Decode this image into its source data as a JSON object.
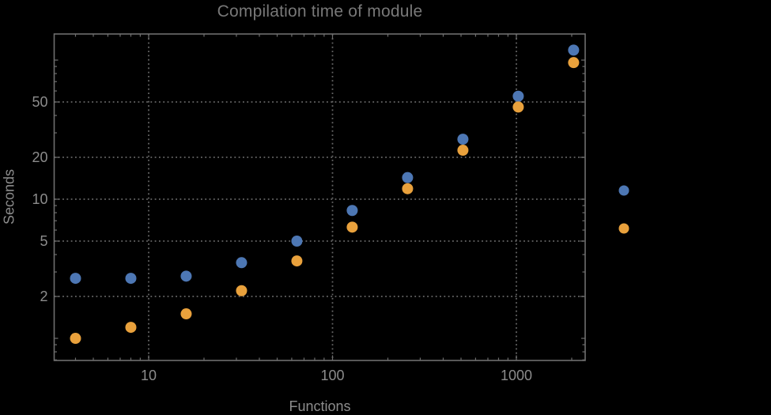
{
  "chart_data": {
    "type": "scatter",
    "scale": "log-log",
    "title": "Compilation time of module",
    "xlabel": "Functions",
    "ylabel": "Seconds",
    "x": [
      4,
      8,
      16,
      32,
      64,
      128,
      256,
      512,
      1024,
      2048
    ],
    "series": [
      {
        "name": "series-1",
        "color": "#4D77B4",
        "values": [
          2.7,
          2.7,
          2.8,
          3.5,
          5.0,
          8.3,
          14.3,
          27,
          55,
          118
        ]
      },
      {
        "name": "series-2",
        "color": "#E9A13C",
        "values": [
          1.0,
          1.2,
          1.5,
          2.2,
          3.6,
          6.3,
          11.9,
          22.5,
          46,
          96
        ]
      }
    ],
    "x_tick_values": [
      10,
      100,
      1000
    ],
    "x_tick_labels": [
      "10",
      "100",
      "1000"
    ],
    "y_tick_values": [
      2,
      5,
      10,
      20,
      50
    ],
    "y_tick_labels": [
      "2",
      "5",
      "10",
      "20",
      "50"
    ],
    "x_range": [
      3.1,
      2360
    ],
    "y_range": [
      0.69,
      152
    ],
    "grid": true,
    "legend": {
      "position": "right-outside",
      "entries": [
        {
          "label": "",
          "series": "series-1",
          "color": "#4D77B4"
        },
        {
          "label": "",
          "series": "series-2",
          "color": "#E9A13C"
        }
      ]
    },
    "colors": {
      "background": "#000000",
      "frame": "#6e6e6e",
      "grid": "#666666",
      "tick_text": "#8c8c8c",
      "title_text": "#787878"
    }
  }
}
